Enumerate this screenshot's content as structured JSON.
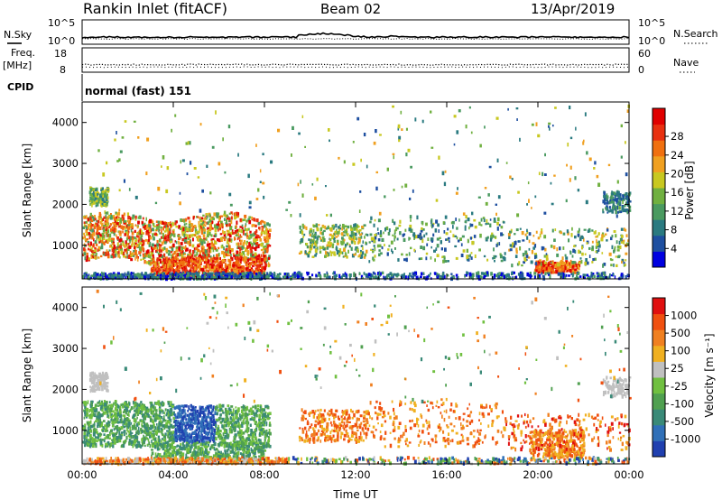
{
  "header": {
    "station": "Rankin Inlet (fitACF)",
    "beam": "Beam 02",
    "date": "13/Apr/2019"
  },
  "time_axis": {
    "ticks": [
      "00:00",
      "04:00",
      "08:00",
      "12:00",
      "16:00",
      "20:00",
      "00:00"
    ],
    "label": "Time UT"
  },
  "noise_panel": {
    "left_label": "N.Sky",
    "right_label": "N.Search",
    "left_ticks": [
      "10^5",
      "10^0"
    ],
    "right_ticks": [
      "10^5",
      "10^0"
    ]
  },
  "freq_panel": {
    "left_label": "Freq.",
    "left_unit": "[MHz]",
    "left_ticks": [
      "18",
      "8"
    ],
    "right_label": "Nave",
    "right_ticks": [
      "60",
      "0"
    ]
  },
  "cpid_panel": {
    "label": "CPID",
    "mode": "normal (fast) 151"
  },
  "chart_data": [
    {
      "type": "heatmap",
      "name": "power",
      "ylabel": "Slant Range [km]",
      "ylim": [
        180,
        4500
      ],
      "y_ticks": [
        "1000",
        "2000",
        "3000",
        "4000"
      ],
      "colorbar": {
        "label": "Power [dB]",
        "ticks": [
          "4",
          "8",
          "12",
          "16",
          "20",
          "24",
          "28"
        ],
        "colors": [
          "#0000e0",
          "#1e4fa0",
          "#2a7a80",
          "#4a9a60",
          "#70b040",
          "#c8c820",
          "#f0a020",
          "#f07010",
          "#e83010",
          "#e00000"
        ]
      }
    },
    {
      "type": "heatmap",
      "name": "velocity",
      "ylabel": "Slant Range [km]",
      "ylim": [
        180,
        4500
      ],
      "y_ticks": [
        "1000",
        "2000",
        "3000",
        "4000"
      ],
      "colorbar": {
        "label": "Velocity [m s⁻¹]",
        "ticks": [
          "1000",
          "500",
          "100",
          "25",
          "-25",
          "-100",
          "-500",
          "-1000"
        ],
        "colors": [
          "#2040b0",
          "#3070b8",
          "#3a8a78",
          "#50a050",
          "#70c040",
          "#c0c0c0",
          "#f0b020",
          "#f08020",
          "#f05010",
          "#e01010"
        ]
      }
    }
  ]
}
